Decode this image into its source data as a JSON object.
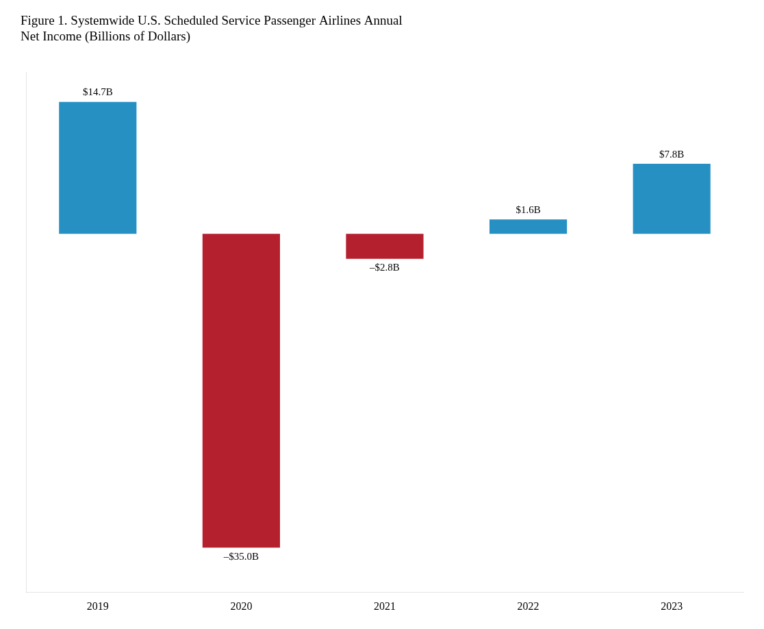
{
  "chart_data": {
    "type": "bar",
    "title": [
      "Figure 1. Systemwide U.S. Scheduled Service Passenger Airlines Annual",
      "Net Income (Billions of Dollars)"
    ],
    "categories": [
      "2019",
      "2020",
      "2021",
      "2022",
      "2023"
    ],
    "values": [
      14.7,
      -35.0,
      -2.8,
      1.6,
      7.8
    ],
    "value_labels": [
      "$14.7B",
      "–$35.0B",
      "–$2.8B",
      "$1.6B",
      "$7.8B"
    ],
    "colors": [
      "#2790C3",
      "#B5202E",
      "#B5202E",
      "#2790C3",
      "#2790C3"
    ],
    "ylim": [
      -40,
      18
    ],
    "grid": false,
    "data_labels": true,
    "tick_labels": "x"
  }
}
